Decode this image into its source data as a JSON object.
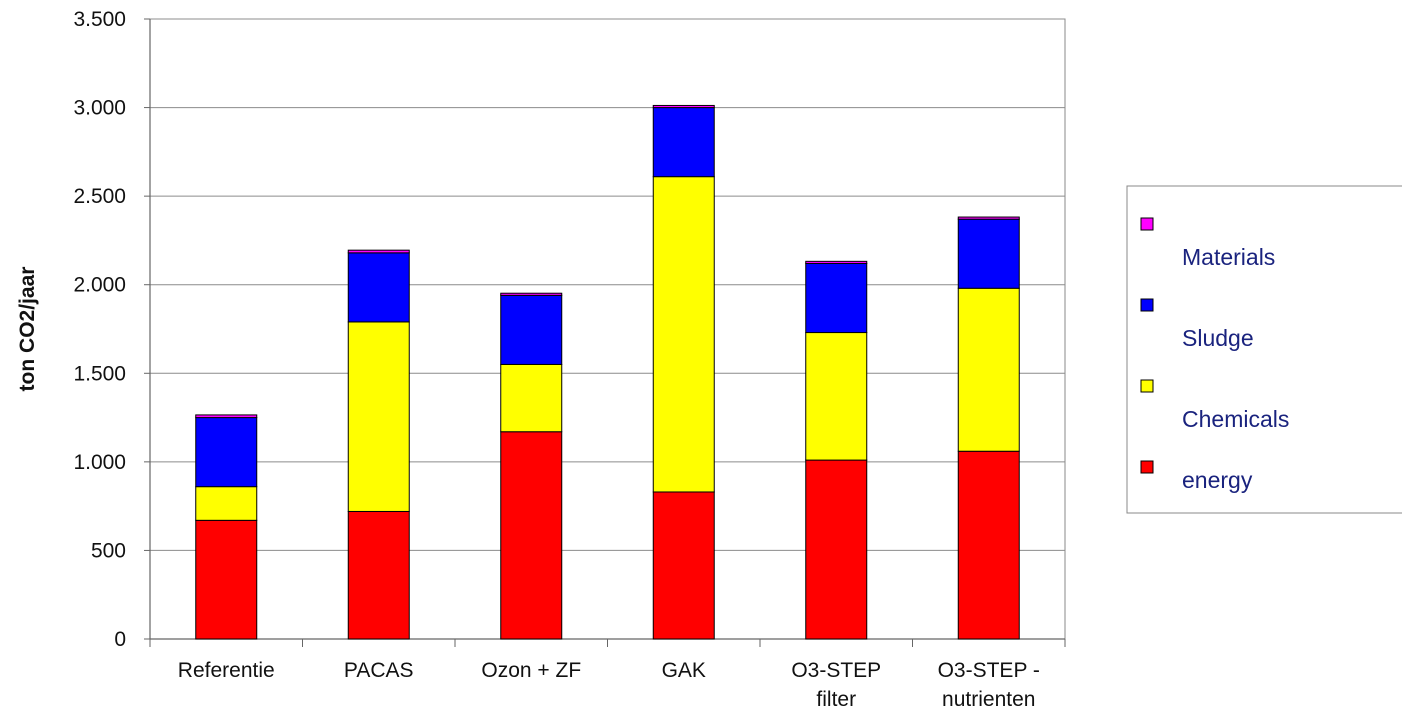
{
  "chart_data": {
    "type": "bar",
    "stacked": true,
    "title": "",
    "xlabel": "",
    "ylabel": "ton CO2/jaar",
    "ylim": [
      0,
      3500
    ],
    "yticks": [
      0,
      500,
      1000,
      1500,
      2000,
      2500,
      3000,
      3500
    ],
    "ytick_labels": [
      "0",
      "500",
      "1.000",
      "1.500",
      "2.000",
      "2.500",
      "3.000",
      "3.500"
    ],
    "grid": true,
    "legend_position": "right",
    "categories": [
      [
        "Referentie"
      ],
      [
        "PACAS"
      ],
      [
        "Ozon + ZF"
      ],
      [
        "GAK"
      ],
      [
        "O3-STEP",
        "filter"
      ],
      [
        "O3-STEP -",
        "nutrienten"
      ]
    ],
    "series": [
      {
        "name": "energy",
        "color": "#ff0000",
        "values": [
          670,
          720,
          1170,
          830,
          1010,
          1060
        ]
      },
      {
        "name": "Chemicals",
        "color": "#ffff00",
        "values": [
          190,
          1070,
          380,
          1780,
          720,
          920
        ]
      },
      {
        "name": "Sludge",
        "color": "#0000ff",
        "values": [
          390,
          390,
          390,
          390,
          390,
          390
        ]
      },
      {
        "name": "Materials",
        "color": "#ff00ff",
        "values": [
          15,
          15,
          12,
          12,
          12,
          12
        ]
      }
    ],
    "legend_order": [
      "Materials",
      "Sludge",
      "Chemicals",
      "energy"
    ]
  }
}
